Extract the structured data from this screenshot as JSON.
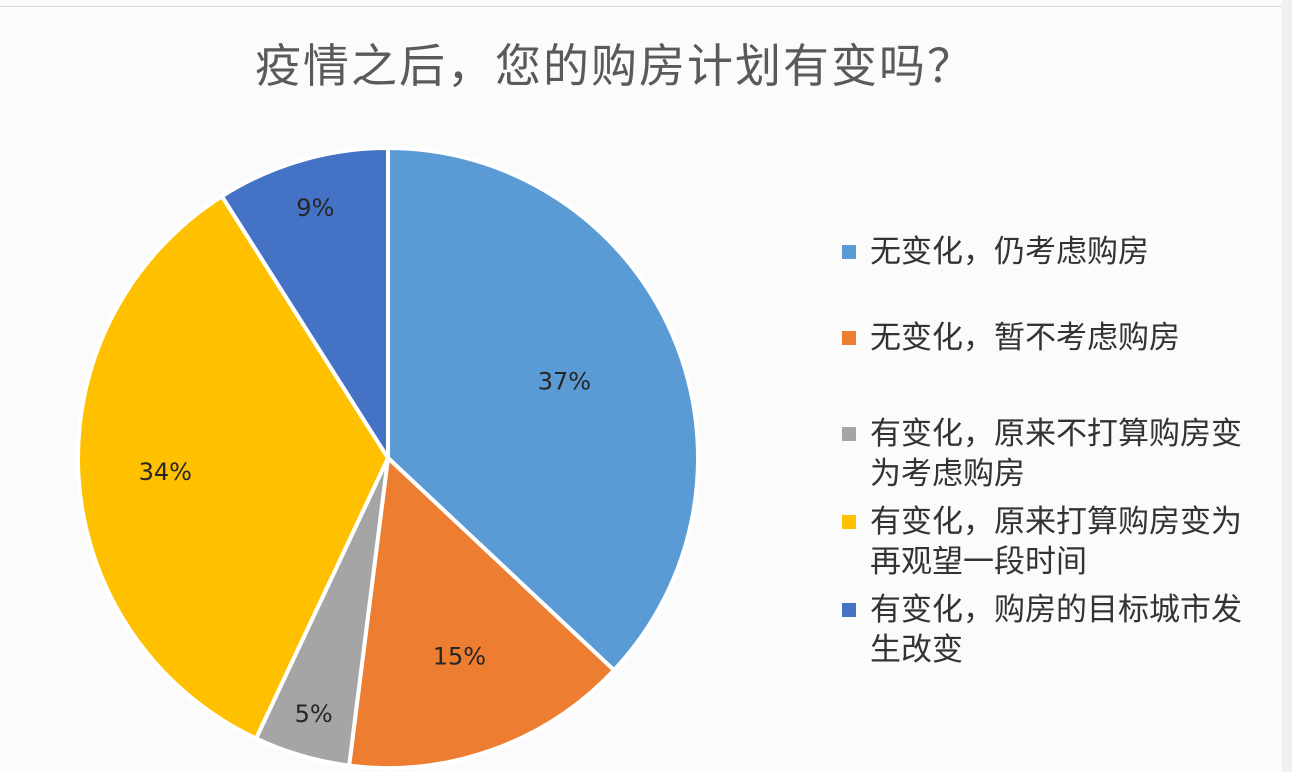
{
  "chart_data": {
    "type": "pie",
    "title": "疫情之后，您的购房计划有变吗？",
    "categories": [
      "无变化，仍考虑购房",
      "无变化，暂不考虑购房",
      "有变化，原来不打算购房变为考虑购房",
      "有变化，原来打算购房变为再观望一段时间",
      "有变化，购房的目标城市发生改变"
    ],
    "values": [
      37,
      15,
      5,
      34,
      9
    ],
    "data_labels": [
      "37%",
      "15%",
      "5%",
      "34%",
      "9%"
    ],
    "colors": [
      "#5b9bd5",
      "#ed7d31",
      "#a5a5a5",
      "#ffc000",
      "#4472c4"
    ],
    "legend_position": "right"
  },
  "legend": {
    "items": [
      {
        "lines": [
          "无变化，仍考虑购房"
        ]
      },
      {
        "lines": [
          "无变化，暂不考虑购房"
        ]
      },
      {
        "lines": [
          "有变化，原来不打算购房变",
          "为考虑购房"
        ]
      },
      {
        "lines": [
          "有变化，原来打算购房变为",
          "再观望一段时间"
        ]
      },
      {
        "lines": [
          "有变化，购房的目标城市发",
          "生改变"
        ]
      }
    ]
  }
}
